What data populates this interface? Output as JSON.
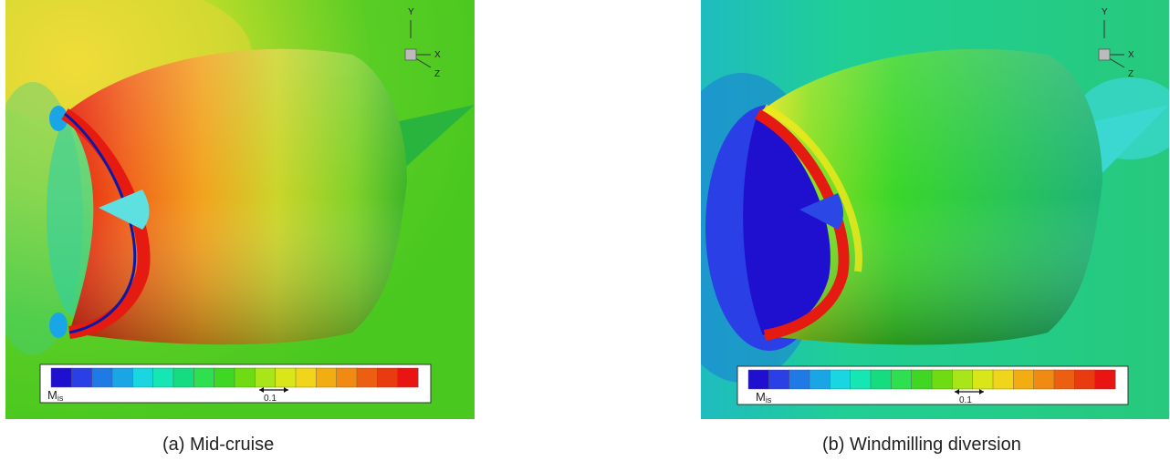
{
  "panels": [
    {
      "id": "a",
      "caption": "(a) Mid-cruise",
      "colorbar": {
        "label_main": "M",
        "label_sub": "is",
        "scale_label": "0.1"
      },
      "axes": {
        "y": "Y",
        "x": "X",
        "z": "Z"
      }
    },
    {
      "id": "b",
      "caption": "(b) Windmilling diversion",
      "colorbar": {
        "label_main": "M",
        "label_sub": "is",
        "scale_label": "0.1"
      },
      "axes": {
        "y": "Y",
        "x": "X",
        "z": "Z"
      }
    }
  ],
  "colormap": [
    "#1f10cf",
    "#2b3fe6",
    "#1f7ae6",
    "#1aa6e6",
    "#19d6e0",
    "#16e6b3",
    "#15dc80",
    "#2ee04f",
    "#3fd624",
    "#6fdb12",
    "#a8e61a",
    "#d8e61a",
    "#f0d51a",
    "#f2ad12",
    "#f08a12",
    "#ec5f12",
    "#ea3a10",
    "#e81512"
  ]
}
